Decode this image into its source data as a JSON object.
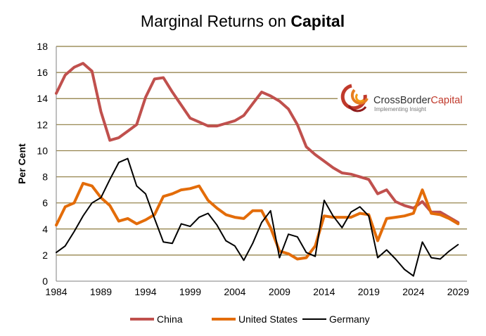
{
  "chart_data": {
    "type": "line",
    "title_plain": "Marginal Returns on ",
    "title_bold": "Capital",
    "ylabel": "Per Cent",
    "xlabel": "",
    "ylim": [
      0,
      18
    ],
    "xlim": [
      1984,
      2030
    ],
    "yticks": [
      0,
      2,
      4,
      6,
      8,
      10,
      12,
      14,
      16,
      18
    ],
    "xticks": [
      1984,
      1989,
      1994,
      1999,
      2004,
      2009,
      2014,
      2019,
      2024,
      2029
    ],
    "grid": true,
    "legend_position": "bottom",
    "colors": {
      "grid": "#8c7a3e",
      "axis": "#7f7f7f"
    },
    "series": [
      {
        "name": "China",
        "color": "#c0504d",
        "x": [
          1984,
          1985,
          1986,
          1987,
          1988,
          1989,
          1990,
          1991,
          1992,
          1993,
          1994,
          1995,
          1996,
          1997,
          1998,
          1999,
          2000,
          2001,
          2002,
          2003,
          2004,
          2005,
          2006,
          2007,
          2008,
          2009,
          2010,
          2011,
          2012,
          2013,
          2014,
          2015,
          2016,
          2017,
          2018,
          2019,
          2020,
          2021,
          2022,
          2023,
          2024,
          2025,
          2026,
          2027,
          2028,
          2029
        ],
        "values": [
          14.4,
          15.8,
          16.4,
          16.7,
          16.1,
          13.0,
          10.8,
          11.0,
          11.5,
          12.0,
          14.1,
          15.5,
          15.6,
          14.5,
          13.5,
          12.5,
          12.2,
          11.9,
          11.9,
          12.1,
          12.3,
          12.7,
          13.6,
          14.5,
          14.2,
          13.8,
          13.2,
          12.0,
          10.3,
          9.7,
          9.2,
          8.7,
          8.3,
          8.2,
          8.0,
          7.8,
          6.7,
          7.0,
          6.1,
          5.8,
          5.6,
          6.1,
          5.3,
          5.3,
          4.9,
          4.5
        ]
      },
      {
        "name": "United States",
        "color": "#e36c09",
        "x": [
          1984,
          1985,
          1986,
          1987,
          1988,
          1989,
          1990,
          1991,
          1992,
          1993,
          1994,
          1995,
          1996,
          1997,
          1998,
          1999,
          2000,
          2001,
          2002,
          2003,
          2004,
          2005,
          2006,
          2007,
          2008,
          2009,
          2010,
          2011,
          2012,
          2013,
          2014,
          2015,
          2016,
          2017,
          2018,
          2019,
          2020,
          2021,
          2022,
          2023,
          2024,
          2025,
          2026,
          2027,
          2028,
          2029
        ],
        "values": [
          4.3,
          5.7,
          6.0,
          7.5,
          7.3,
          6.4,
          5.8,
          4.6,
          4.8,
          4.4,
          4.7,
          5.1,
          6.5,
          6.7,
          7.0,
          7.1,
          7.3,
          6.2,
          5.6,
          5.1,
          4.9,
          4.8,
          5.4,
          5.4,
          4.1,
          2.3,
          2.1,
          1.7,
          1.8,
          2.7,
          5.0,
          4.9,
          4.9,
          4.9,
          5.2,
          5.1,
          3.1,
          4.8,
          4.9,
          5.0,
          5.2,
          7.0,
          5.2,
          5.1,
          4.8,
          4.4
        ]
      },
      {
        "name": "Germany",
        "color": "#000000",
        "x": [
          1984,
          1985,
          1986,
          1987,
          1988,
          1989,
          1990,
          1991,
          1992,
          1993,
          1994,
          1995,
          1996,
          1997,
          1998,
          1999,
          2000,
          2001,
          2002,
          2003,
          2004,
          2005,
          2006,
          2007,
          2008,
          2009,
          2010,
          2011,
          2012,
          2013,
          2014,
          2015,
          2016,
          2017,
          2018,
          2019,
          2020,
          2021,
          2022,
          2023,
          2024,
          2025,
          2026,
          2027,
          2028,
          2029
        ],
        "values": [
          2.2,
          2.7,
          3.8,
          5.0,
          6.0,
          6.4,
          7.8,
          9.1,
          9.4,
          7.3,
          6.7,
          4.8,
          3.0,
          2.9,
          4.4,
          4.2,
          4.9,
          5.2,
          4.3,
          3.1,
          2.7,
          1.6,
          2.9,
          4.5,
          5.4,
          1.8,
          3.6,
          3.4,
          2.2,
          1.9,
          6.2,
          5.0,
          4.1,
          5.3,
          5.7,
          5.0,
          1.8,
          2.4,
          1.7,
          0.9,
          0.4,
          3.0,
          1.8,
          1.7,
          2.3,
          2.8
        ]
      }
    ]
  },
  "logo": {
    "name_part1": "CrossBorder",
    "name_part2": "Capital",
    "tagline": "Implementing Insight"
  }
}
